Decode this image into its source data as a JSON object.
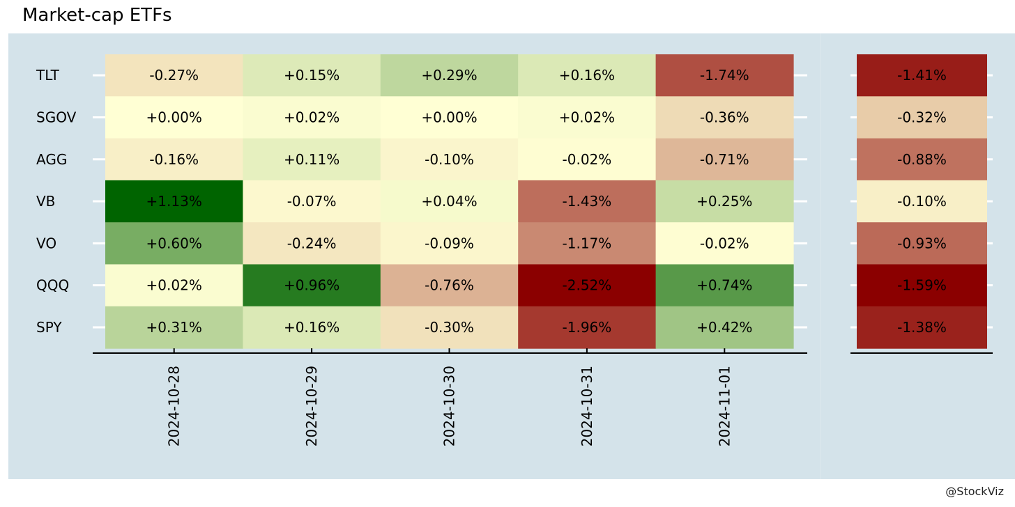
{
  "title": "Market-cap ETFs",
  "credit": "@StockViz",
  "chart_data": {
    "type": "heatmap",
    "tickers": [
      "TLT",
      "SGOV",
      "AGG",
      "VB",
      "VO",
      "QQQ",
      "SPY"
    ],
    "dates": [
      "2024-10-28",
      "2024-10-29",
      "2024-10-30",
      "2024-10-31",
      "2024-11-01"
    ],
    "daily_labels": [
      [
        "-0.27%",
        "+0.15%",
        "+0.29%",
        "+0.16%",
        "-1.74%"
      ],
      [
        "+0.00%",
        "+0.02%",
        "+0.00%",
        "+0.02%",
        "-0.36%"
      ],
      [
        "-0.16%",
        "+0.11%",
        "-0.10%",
        "-0.02%",
        "-0.71%"
      ],
      [
        "+1.13%",
        "-0.07%",
        "+0.04%",
        "-1.43%",
        "+0.25%"
      ],
      [
        "+0.60%",
        "-0.24%",
        "-0.09%",
        "-1.17%",
        "-0.02%"
      ],
      [
        "+0.02%",
        "+0.96%",
        "-0.76%",
        "-2.52%",
        "+0.74%"
      ],
      [
        "+0.31%",
        "+0.16%",
        "-0.30%",
        "-1.96%",
        "+0.42%"
      ]
    ],
    "daily_values": [
      [
        -0.27,
        0.15,
        0.29,
        0.16,
        -1.74
      ],
      [
        0.0,
        0.02,
        0.0,
        0.02,
        -0.36
      ],
      [
        -0.16,
        0.11,
        -0.1,
        -0.02,
        -0.71
      ],
      [
        1.13,
        -0.07,
        0.04,
        -1.43,
        0.25
      ],
      [
        0.6,
        -0.24,
        -0.09,
        -1.17,
        -0.02
      ],
      [
        0.02,
        0.96,
        -0.76,
        -2.52,
        0.74
      ],
      [
        0.31,
        0.16,
        -0.3,
        -1.96,
        0.42
      ]
    ],
    "total_labels": [
      "-1.41%",
      "-0.32%",
      "-0.88%",
      "-0.10%",
      "-0.93%",
      "-1.59%",
      "-1.38%"
    ],
    "total_values": [
      -1.41,
      -0.32,
      -0.88,
      -0.1,
      -0.93,
      -1.59,
      -1.38
    ],
    "colors": {
      "negative_max": "#8b0000",
      "neutral": "#ffffd4",
      "positive_max": "#006400"
    }
  }
}
